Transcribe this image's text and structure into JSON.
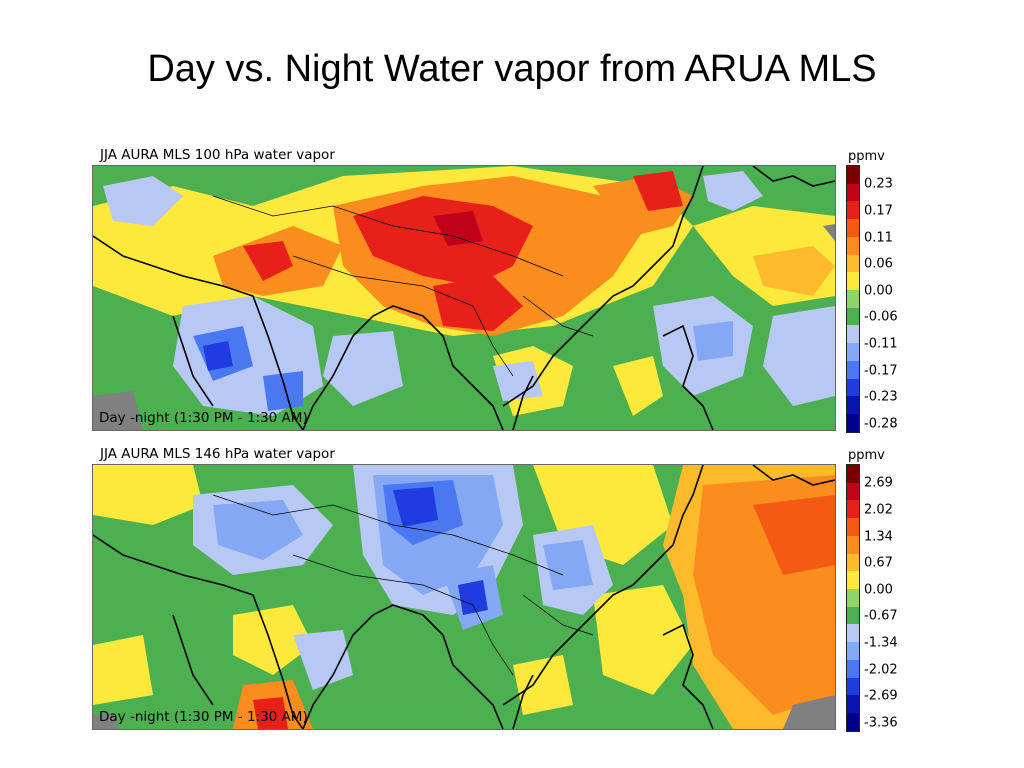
{
  "slide": {
    "title": "Day vs. Night Water vapor from ARUA MLS"
  },
  "panels": [
    {
      "title": "JJA AURA MLS 100 hPa water vapor",
      "caption": "Day -night (1:30 PM - 1:30 AM)",
      "unit": "ppmv",
      "ticks": [
        "0.23",
        "0.17",
        "0.11",
        "0.06",
        "0.00",
        "-0.06",
        "-0.11",
        "-0.17",
        "-0.23",
        "-0.28"
      ]
    },
    {
      "title": "JJA AURA MLS 146 hPa water vapor",
      "caption": "Day -night (1:30 PM - 1:30 AM)",
      "unit": "ppmv",
      "ticks": [
        "2.69",
        "2.02",
        "1.34",
        "0.67",
        "0.00",
        "-0.67",
        "-1.34",
        "-2.02",
        "-2.69",
        "-3.36"
      ]
    }
  ],
  "colors": {
    "scale": [
      "#7a0000",
      "#c0001a",
      "#e8201a",
      "#f55a14",
      "#fb8c1e",
      "#fdbb2c",
      "#fde93b",
      "#8fd468",
      "#4caf50",
      "#b8c8f4",
      "#84a8f4",
      "#4a78f0",
      "#1e3ce0",
      "#0a14b0",
      "#00008c"
    ],
    "land_outline": "#000000",
    "missing": "#808080"
  }
}
